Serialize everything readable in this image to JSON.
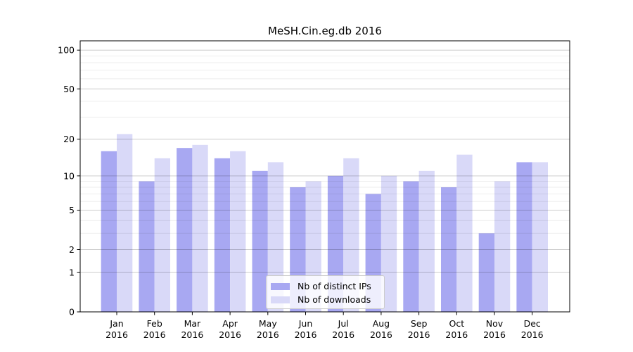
{
  "chart_data": {
    "type": "bar",
    "title": "MeSH.Cin.eg.db 2016",
    "categories": [
      "Jan",
      "Feb",
      "Mar",
      "Apr",
      "May",
      "Jun",
      "Jul",
      "Aug",
      "Sep",
      "Oct",
      "Nov",
      "Dec"
    ],
    "year_label": "2016",
    "series": [
      {
        "key": "distinct-ips",
        "name": "Nb of distinct IPs",
        "color": "#a8a8f2",
        "values": [
          16,
          9,
          17,
          14,
          11,
          8,
          10,
          7,
          9,
          8,
          3,
          13
        ]
      },
      {
        "key": "downloads",
        "name": "Nb of downloads",
        "color": "#d9d9f8",
        "values": [
          22,
          14,
          18,
          16,
          13,
          9,
          14,
          10,
          11,
          15,
          9,
          13
        ]
      }
    ],
    "yscale": "log1p",
    "ylim": [
      0,
      118
    ],
    "yticks": [
      0,
      1,
      2,
      5,
      10,
      20,
      50,
      100
    ],
    "yticks_minor": [
      3,
      4,
      6,
      7,
      8,
      9,
      30,
      40,
      60,
      70,
      80,
      90
    ],
    "xlabel": "",
    "ylabel": "",
    "grid": "horizontal",
    "legend_position": "lower center"
  },
  "style": {
    "background": "#ffffff",
    "axis_color": "#000000",
    "text_color": "#000000",
    "grid_major_color": "rgba(0,0,0,0.20)",
    "grid_minor_color": "rgba(0,0,0,0.07)",
    "legend_border_color": "#cccccc",
    "legend_background": "rgba(255,255,255,0.8)"
  }
}
